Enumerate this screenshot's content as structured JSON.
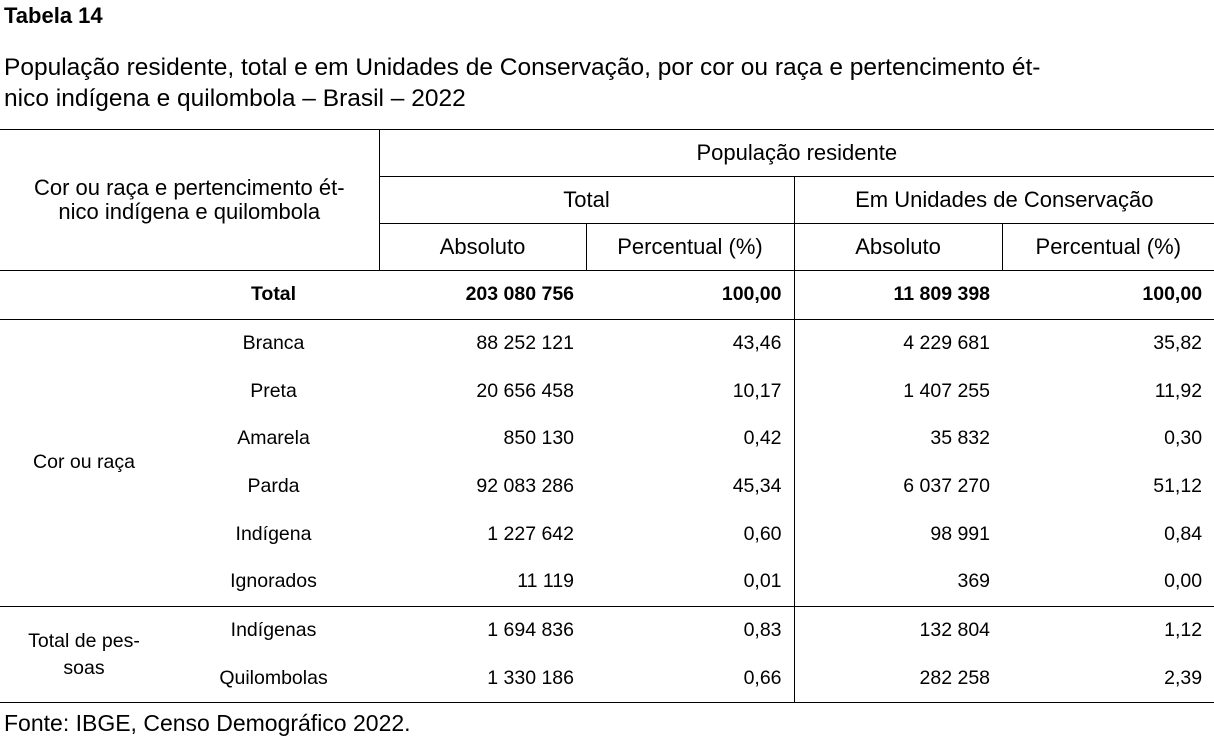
{
  "label": "Tabela 14",
  "caption_lines": [
    "População residente, total e em Unidades de Conservação, por cor ou raça e pertencimento ét-",
    "nico indígena e quilombola – Brasil – 2022"
  ],
  "header": {
    "stub_lines": [
      "Cor ou raça e pertencimento ét-",
      "nico indígena e quilombola"
    ],
    "top": "População residente",
    "group_total": "Total",
    "group_uc": "Em Unidades de Conservação",
    "col_abs": "Absoluto",
    "col_pct": "Percentual (%)"
  },
  "total_row": {
    "label": "Total",
    "total_abs": "203 080 756",
    "total_pct": "100,00",
    "uc_abs": "11 809 398",
    "uc_pct": "100,00"
  },
  "groups": [
    {
      "name_lines": [
        "Cor ou raça"
      ],
      "rows": [
        {
          "label": "Branca",
          "total_abs": "88 252 121",
          "total_pct": "43,46",
          "uc_abs": "4 229 681",
          "uc_pct": "35,82"
        },
        {
          "label": "Preta",
          "total_abs": "20 656 458",
          "total_pct": "10,17",
          "uc_abs": "1 407 255",
          "uc_pct": "11,92"
        },
        {
          "label": "Amarela",
          "total_abs": "850 130",
          "total_pct": "0,42",
          "uc_abs": "35 832",
          "uc_pct": "0,30"
        },
        {
          "label": "Parda",
          "total_abs": "92 083 286",
          "total_pct": "45,34",
          "uc_abs": "6 037 270",
          "uc_pct": "51,12"
        },
        {
          "label": "Indígena",
          "total_abs": "1 227 642",
          "total_pct": "0,60",
          "uc_abs": "98 991",
          "uc_pct": "0,84"
        },
        {
          "label": "Ignorados",
          "total_abs": "11 119",
          "total_pct": "0,01",
          "uc_abs": "369",
          "uc_pct": "0,00"
        }
      ]
    },
    {
      "name_lines": [
        "Total de pes-",
        "soas"
      ],
      "rows": [
        {
          "label": "Indígenas",
          "total_abs": "1 694 836",
          "total_pct": "0,83",
          "uc_abs": "132 804",
          "uc_pct": "1,12"
        },
        {
          "label": "Quilombolas",
          "total_abs": "1 330 186",
          "total_pct": "0,66",
          "uc_abs": "282 258",
          "uc_pct": "2,39"
        }
      ]
    }
  ],
  "source": "Fonte: IBGE, Censo Demográfico 2022."
}
